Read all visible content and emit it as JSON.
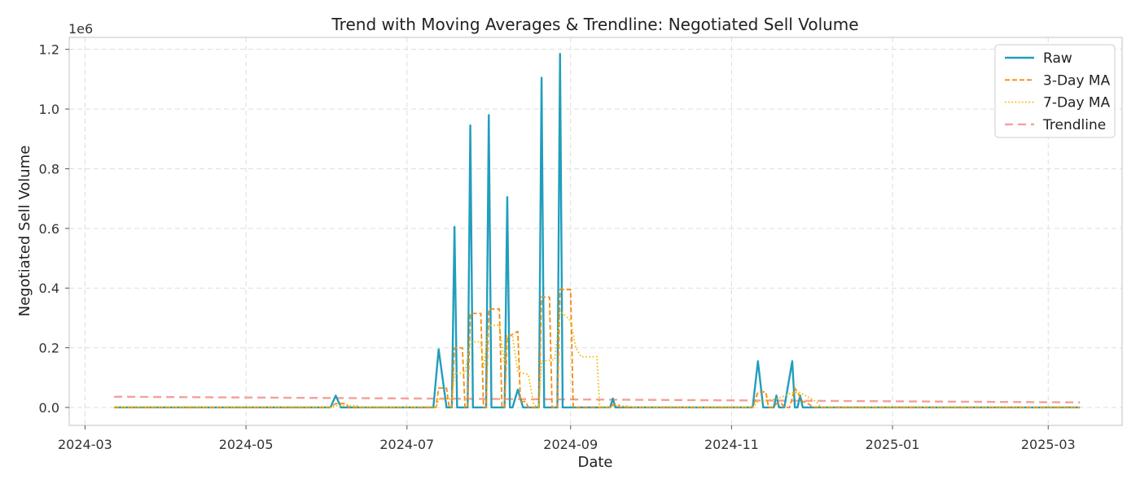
{
  "chart_data": {
    "type": "line",
    "title": "Trend with Moving Averages & Trendline: Negotiated Sell Volume",
    "xlabel": "Date",
    "ylabel": "Negotiated Sell Volume",
    "y_offset_label": "1e6",
    "y_scale": 1000000,
    "xlim": [
      "2024-02-24",
      "2025-03-29"
    ],
    "ylim": [
      -0.06,
      1.24
    ],
    "x_ticks": [
      "2024-03",
      "2024-05",
      "2024-07",
      "2024-09",
      "2024-11",
      "2025-01",
      "2025-03"
    ],
    "y_ticks": [
      0.0,
      0.2,
      0.4,
      0.6,
      0.8,
      1.0,
      1.2
    ],
    "grid": true,
    "legend_position": "top-right",
    "series": [
      {
        "name": "Raw",
        "style": "solid",
        "color": "#219ebc",
        "points": [
          [
            "2024-03-12",
            0
          ],
          [
            "2024-06-02",
            0
          ],
          [
            "2024-06-04",
            0.04
          ],
          [
            "2024-06-06",
            0
          ],
          [
            "2024-07-11",
            0
          ],
          [
            "2024-07-13",
            0.195
          ],
          [
            "2024-07-16",
            0
          ],
          [
            "2024-07-18",
            0
          ],
          [
            "2024-07-19",
            0.605
          ],
          [
            "2024-07-20",
            0
          ],
          [
            "2024-07-24",
            0
          ],
          [
            "2024-07-25",
            0.945
          ],
          [
            "2024-07-26",
            0
          ],
          [
            "2024-07-31",
            0
          ],
          [
            "2024-08-01",
            0.98
          ],
          [
            "2024-08-02",
            0
          ],
          [
            "2024-08-07",
            0
          ],
          [
            "2024-08-08",
            0.705
          ],
          [
            "2024-08-09",
            0
          ],
          [
            "2024-08-10",
            0
          ],
          [
            "2024-08-12",
            0.06
          ],
          [
            "2024-08-14",
            0
          ],
          [
            "2024-08-20",
            0
          ],
          [
            "2024-08-21",
            1.105
          ],
          [
            "2024-08-22",
            0
          ],
          [
            "2024-08-27",
            0
          ],
          [
            "2024-08-28",
            1.185
          ],
          [
            "2024-08-29",
            0
          ],
          [
            "2024-09-16",
            0
          ],
          [
            "2024-09-17",
            0.03
          ],
          [
            "2024-09-18",
            0
          ],
          [
            "2024-11-09",
            0
          ],
          [
            "2024-11-11",
            0.155
          ],
          [
            "2024-11-13",
            0
          ],
          [
            "2024-11-17",
            0
          ],
          [
            "2024-11-18",
            0.04
          ],
          [
            "2024-11-19",
            0
          ],
          [
            "2024-11-21",
            0
          ],
          [
            "2024-11-24",
            0.155
          ],
          [
            "2024-11-25",
            0
          ],
          [
            "2024-11-26",
            0
          ],
          [
            "2024-11-27",
            0.04
          ],
          [
            "2024-11-28",
            0
          ],
          [
            "2025-03-13",
            0
          ]
        ]
      },
      {
        "name": "3-Day MA",
        "style": "dashed",
        "color": "#f28c10",
        "points": [
          [
            "2024-03-12",
            0
          ],
          [
            "2024-06-02",
            0
          ],
          [
            "2024-06-04",
            0.013
          ],
          [
            "2024-06-08",
            0.013
          ],
          [
            "2024-06-09",
            0
          ],
          [
            "2024-07-12",
            0
          ],
          [
            "2024-07-13",
            0.065
          ],
          [
            "2024-07-16",
            0.065
          ],
          [
            "2024-07-17",
            0
          ],
          [
            "2024-07-18",
            0
          ],
          [
            "2024-07-19",
            0.2
          ],
          [
            "2024-07-22",
            0.2
          ],
          [
            "2024-07-23",
            0
          ],
          [
            "2024-07-24",
            0
          ],
          [
            "2024-07-25",
            0.315
          ],
          [
            "2024-07-29",
            0.315
          ],
          [
            "2024-07-30",
            0
          ],
          [
            "2024-07-31",
            0
          ],
          [
            "2024-08-01",
            0.33
          ],
          [
            "2024-08-05",
            0.33
          ],
          [
            "2024-08-06",
            0
          ],
          [
            "2024-08-07",
            0
          ],
          [
            "2024-08-08",
            0.235
          ],
          [
            "2024-08-12",
            0.255
          ],
          [
            "2024-08-13",
            0.02
          ],
          [
            "2024-08-15",
            0.02
          ],
          [
            "2024-08-16",
            0
          ],
          [
            "2024-08-20",
            0
          ],
          [
            "2024-08-21",
            0.37
          ],
          [
            "2024-08-24",
            0.37
          ],
          [
            "2024-08-25",
            0
          ],
          [
            "2024-08-27",
            0
          ],
          [
            "2024-08-28",
            0.395
          ],
          [
            "2024-09-01",
            0.395
          ],
          [
            "2024-09-02",
            0
          ],
          [
            "2024-09-16",
            0
          ],
          [
            "2024-09-17",
            0.01
          ],
          [
            "2024-09-19",
            0.01
          ],
          [
            "2024-09-20",
            0
          ],
          [
            "2024-11-09",
            0
          ],
          [
            "2024-11-11",
            0.052
          ],
          [
            "2024-11-14",
            0.052
          ],
          [
            "2024-11-15",
            0
          ],
          [
            "2024-11-17",
            0
          ],
          [
            "2024-11-18",
            0.013
          ],
          [
            "2024-11-20",
            0.013
          ],
          [
            "2024-11-21",
            0
          ],
          [
            "2024-11-23",
            0
          ],
          [
            "2024-11-25",
            0.065
          ],
          [
            "2024-11-28",
            0.02
          ],
          [
            "2024-11-30",
            0.013
          ],
          [
            "2024-12-02",
            0
          ],
          [
            "2025-03-13",
            0
          ]
        ]
      },
      {
        "name": "7-Day MA",
        "style": "dotted",
        "color": "#f5b700",
        "points": [
          [
            "2024-03-12",
            0
          ],
          [
            "2024-06-02",
            0
          ],
          [
            "2024-06-04",
            0.006
          ],
          [
            "2024-06-12",
            0.006
          ],
          [
            "2024-06-13",
            0
          ],
          [
            "2024-07-12",
            0
          ],
          [
            "2024-07-13",
            0.028
          ],
          [
            "2024-07-18",
            0.028
          ],
          [
            "2024-07-19",
            0.115
          ],
          [
            "2024-07-23",
            0.115
          ],
          [
            "2024-07-25",
            0.22
          ],
          [
            "2024-07-29",
            0.22
          ],
          [
            "2024-07-30",
            0.13
          ],
          [
            "2024-08-01",
            0.275
          ],
          [
            "2024-08-05",
            0.275
          ],
          [
            "2024-08-07",
            0.14
          ],
          [
            "2024-08-08",
            0.24
          ],
          [
            "2024-08-10",
            0.24
          ],
          [
            "2024-08-12",
            0.12
          ],
          [
            "2024-08-16",
            0.11
          ],
          [
            "2024-08-18",
            0.01
          ],
          [
            "2024-08-20",
            0
          ],
          [
            "2024-08-21",
            0.155
          ],
          [
            "2024-08-26",
            0.16
          ],
          [
            "2024-08-28",
            0.325
          ],
          [
            "2024-09-01",
            0.29
          ],
          [
            "2024-09-03",
            0.2
          ],
          [
            "2024-09-05",
            0.17
          ],
          [
            "2024-09-11",
            0.17
          ],
          [
            "2024-09-12",
            0
          ],
          [
            "2024-09-16",
            0
          ],
          [
            "2024-09-17",
            0.005
          ],
          [
            "2024-09-23",
            0.005
          ],
          [
            "2024-09-24",
            0
          ],
          [
            "2024-11-09",
            0
          ],
          [
            "2024-11-11",
            0.022
          ],
          [
            "2024-11-18",
            0.028
          ],
          [
            "2024-11-24",
            0.05
          ],
          [
            "2024-11-27",
            0.05
          ],
          [
            "2024-11-29",
            0.04
          ],
          [
            "2024-12-03",
            0.02
          ],
          [
            "2024-12-05",
            0
          ],
          [
            "2025-03-13",
            0
          ]
        ]
      },
      {
        "name": "Trendline",
        "style": "long-dashed",
        "color": "#f4a09a",
        "points": [
          [
            "2024-03-12",
            0.036
          ],
          [
            "2025-03-13",
            0.017
          ]
        ]
      }
    ]
  }
}
